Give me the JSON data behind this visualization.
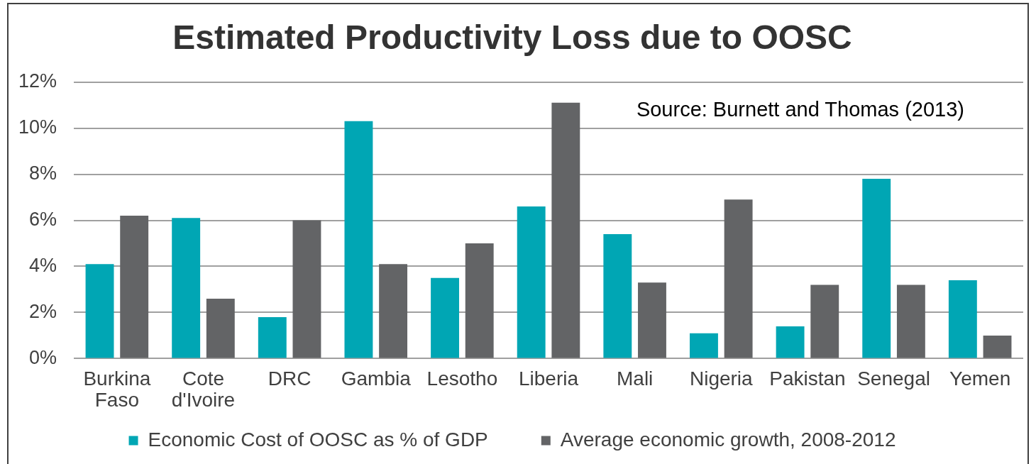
{
  "chart_data": {
    "type": "bar",
    "title": "Estimated Productivity Loss due to OOSC",
    "categories": [
      "Burkina Faso",
      "Cote d'Ivoire",
      "DRC",
      "Gambia",
      "Lesotho",
      "Liberia",
      "Mali",
      "Nigeria",
      "Pakistan",
      "Senegal",
      "Yemen"
    ],
    "series": [
      {
        "name": "Economic Cost of OOSC as % of GDP",
        "color": "#00a6b4",
        "values": [
          4.1,
          6.1,
          1.8,
          10.3,
          3.5,
          6.6,
          5.4,
          1.1,
          1.4,
          7.8,
          3.4
        ]
      },
      {
        "name": "Average economic growth, 2008-2012",
        "color": "#636466",
        "values": [
          6.2,
          2.6,
          6.0,
          4.1,
          5.0,
          11.1,
          3.3,
          6.9,
          3.2,
          3.2,
          1.0
        ]
      }
    ],
    "ylim": [
      0,
      12
    ],
    "yticks": [
      {
        "value": 0,
        "label": "0%"
      },
      {
        "value": 2,
        "label": "2%"
      },
      {
        "value": 4,
        "label": "4%"
      },
      {
        "value": 6,
        "label": "6%"
      },
      {
        "value": 8,
        "label": "8%"
      },
      {
        "value": 10,
        "label": "10%"
      },
      {
        "value": 12,
        "label": "12%"
      }
    ],
    "grid": "y",
    "legend": "bottom",
    "annotations": [
      "Source: Burnett and Thomas (2013)"
    ]
  }
}
